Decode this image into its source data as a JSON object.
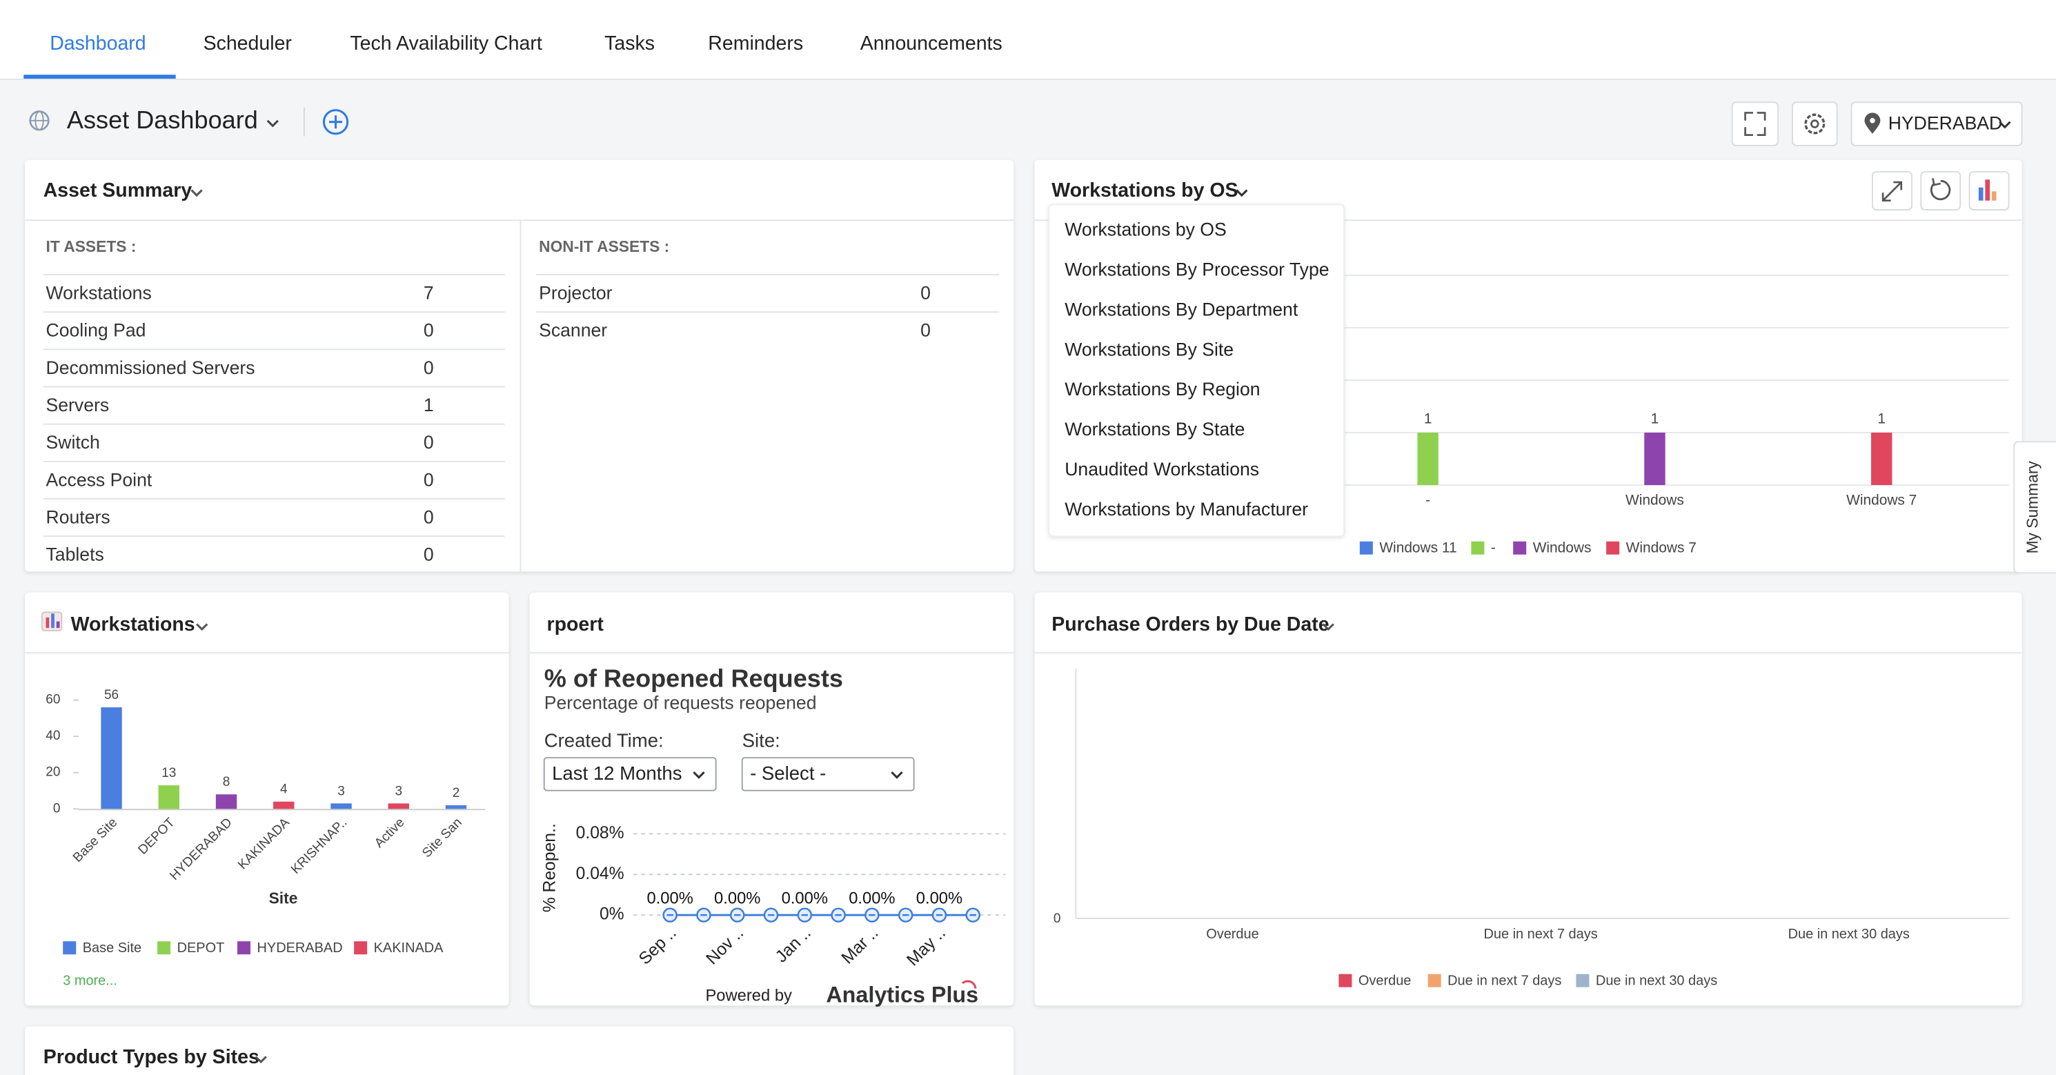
{
  "tabs": [
    "Dashboard",
    "Scheduler",
    "Tech Availability Chart",
    "Tasks",
    "Reminders",
    "Announcements"
  ],
  "toolbar": {
    "title": "Asset Dashboard",
    "location": "HYDERABAD"
  },
  "asset_summary": {
    "title": "Asset Summary",
    "it_assets": {
      "heading": "IT ASSETS :",
      "rows": [
        [
          "Workstations",
          7
        ],
        [
          "Cooling Pad",
          0
        ],
        [
          "Decommissioned Servers",
          0
        ],
        [
          "Servers",
          1
        ],
        [
          "Switch",
          0
        ],
        [
          "Access Point",
          0
        ],
        [
          "Routers",
          0
        ],
        [
          "Tablets",
          0
        ]
      ]
    },
    "non_it_assets": {
      "heading": "NON-IT ASSETS :",
      "rows": [
        [
          "Projector",
          0
        ],
        [
          "Scanner",
          0
        ]
      ]
    }
  },
  "workstations_by_os": {
    "title": "Workstations by OS",
    "menu": [
      "Workstations by OS",
      "Workstations By Processor Type",
      "Workstations By Department",
      "Workstations By Site",
      "Workstations By Region",
      "Workstations By State",
      "Unaudited Workstations",
      "Workstations by Manufacturer"
    ],
    "chart_data": {
      "type": "bar",
      "categories": [
        "-",
        "Windows",
        "Windows 7"
      ],
      "values": [
        1,
        1,
        1
      ],
      "colors": [
        "#8fd14f",
        "#8e44ad",
        "#e0475e"
      ],
      "ylim": [
        0,
        4
      ],
      "legend": [
        {
          "name": "Windows 11",
          "color": "#4a7fe0"
        },
        {
          "name": "-",
          "color": "#8fd14f"
        },
        {
          "name": "Windows",
          "color": "#8e44ad"
        },
        {
          "name": "Windows 7",
          "color": "#e0475e"
        }
      ]
    }
  },
  "workstations": {
    "title": "Workstations",
    "chart_data": {
      "type": "bar",
      "x_label": "Site",
      "categories": [
        "Base Site",
        "DEPOT",
        "HYDERABAD",
        "KAKINADA",
        "KRISHNAP..",
        "Active",
        "Site San"
      ],
      "values": [
        56,
        13,
        8,
        4,
        3,
        3,
        2
      ],
      "colors": [
        "#4a7fe0",
        "#8fd14f",
        "#8e44ad",
        "#e0475e",
        "#4a7fe0",
        "#e0475e",
        "#4a7fe0"
      ],
      "ylim": [
        0,
        60
      ],
      "yticks": [
        0,
        20,
        40,
        60
      ],
      "legend": [
        {
          "name": "Base Site",
          "color": "#4a7fe0"
        },
        {
          "name": "DEPOT",
          "color": "#8fd14f"
        },
        {
          "name": "HYDERABAD",
          "color": "#8e44ad"
        },
        {
          "name": "KAKINADA",
          "color": "#e0475e"
        }
      ],
      "more": "3 more..."
    }
  },
  "reopened": {
    "title": "rpoert",
    "chart_data": {
      "type": "line",
      "title": "% of Reopened Requests",
      "subtitle": "Percentage of requests reopened",
      "filters": [
        {
          "label": "Created Time:",
          "value": "Last 12 Months"
        },
        {
          "label": "Site:",
          "value": "- Select -"
        }
      ],
      "y_label": "% Reopen..",
      "categories": [
        "Sep ..",
        null,
        "Nov ..",
        null,
        "Jan ..",
        null,
        "Mar ..",
        null,
        "May ..",
        null
      ],
      "values": [
        0,
        0,
        0,
        0,
        0,
        0,
        0,
        0,
        0,
        0
      ],
      "value_labels": [
        "0.00%",
        null,
        "0.00%",
        null,
        "0.00%",
        null,
        "0.00%",
        null,
        "0.00%",
        null
      ],
      "color": "#3b7ddd",
      "ylim": [
        0,
        0.08
      ],
      "yticks": [
        {
          "value": 0,
          "label": "0%"
        },
        {
          "value": 0.04,
          "label": "0.04%"
        },
        {
          "value": 0.08,
          "label": "0.08%"
        }
      ],
      "powered_by": "Powered by",
      "brand": "Analytics Plus"
    }
  },
  "purchase_orders": {
    "title": "Purchase Orders by Due Date",
    "chart_data": {
      "type": "bar",
      "categories": [
        "Overdue",
        "Due in next 7 days",
        "Due in next 30 days"
      ],
      "ylim": [
        0,
        1
      ],
      "yticks": [
        0
      ],
      "legend": [
        {
          "name": "Overdue",
          "color": "#e0475e"
        },
        {
          "name": "Due in next 7 days",
          "color": "#f0a46c"
        },
        {
          "name": "Due in next 30 days",
          "color": "#9fb3cc"
        }
      ]
    }
  },
  "product_types": {
    "title": "Product Types by Sites"
  },
  "side_tab": "My Summary"
}
